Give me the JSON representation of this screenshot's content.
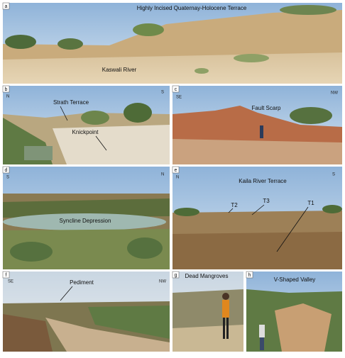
{
  "panels": [
    {
      "label": "a",
      "annotations": [
        "Highly Incised Quaternay-Holocene Terrace",
        "Kaswali River"
      ]
    },
    {
      "label": "b",
      "directions": [
        "N",
        "S"
      ],
      "annotations": [
        "Strath Terrace",
        "Knickpoint"
      ]
    },
    {
      "label": "c",
      "directions": [
        "SE",
        "NW"
      ],
      "annotations": [
        "Fault Scarp"
      ]
    },
    {
      "label": "d",
      "directions": [
        "S",
        "N"
      ],
      "annotations": [
        "Syncline Depression"
      ]
    },
    {
      "label": "e",
      "directions": [
        "N",
        "S"
      ],
      "annotations": [
        "Kaila River Terrace",
        "T2",
        "T3",
        "T1"
      ]
    },
    {
      "label": "f",
      "directions": [
        "SE",
        "NW"
      ],
      "annotations": [
        "Pediment"
      ]
    },
    {
      "label": "g",
      "annotations": [
        "Dead Mangroves"
      ]
    },
    {
      "label": "h",
      "annotations": [
        "V-Shaped Valley"
      ]
    }
  ]
}
